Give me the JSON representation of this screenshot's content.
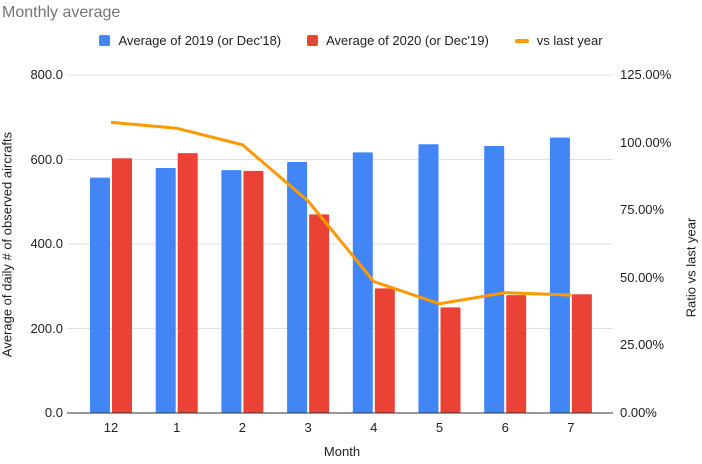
{
  "chart_data": {
    "type": "bar",
    "subtype": "combo-bar-line",
    "title": "Monthly average",
    "categories": [
      "12",
      "1",
      "2",
      "3",
      "4",
      "5",
      "6",
      "7"
    ],
    "series": [
      {
        "name": "Average of 2019 (or Dec'18)",
        "type": "bar",
        "axis": "left",
        "color": "#4285F4",
        "values": [
          557,
          580,
          575,
          594,
          617,
          636,
          632,
          652
        ]
      },
      {
        "name": "Average of 2020 (or Dec'19)",
        "type": "bar",
        "axis": "left",
        "color": "#EA4335",
        "values": [
          603,
          615,
          573,
          470,
          295,
          250,
          279,
          281
        ]
      },
      {
        "name": "vs last year",
        "type": "line",
        "axis": "right",
        "color": "#FF9900",
        "values": [
          107.5,
          105.3,
          99.2,
          78.4,
          48.6,
          40.4,
          44.5,
          43.6
        ]
      }
    ],
    "x_axis": {
      "title": "Month"
    },
    "left_axis": {
      "title": "Average of daily # of observed aircrafts",
      "min": 0,
      "max": 800,
      "tick_step": 200,
      "tick_labels": [
        "0.0",
        "200.0",
        "400.0",
        "600.0",
        "800.0"
      ]
    },
    "right_axis": {
      "title": "Ratio vs last year",
      "min": 0,
      "max": 125,
      "tick_step": 25,
      "tick_labels": [
        "0.00%",
        "25.00%",
        "50.00%",
        "75.00%",
        "100.00%",
        "125.00%"
      ]
    },
    "grid": true,
    "legend_position": "top",
    "colors": {
      "gridline": "#e0e0e0",
      "axis_line": "#333333",
      "title_text": "#757575",
      "label_text": "#212121"
    }
  }
}
